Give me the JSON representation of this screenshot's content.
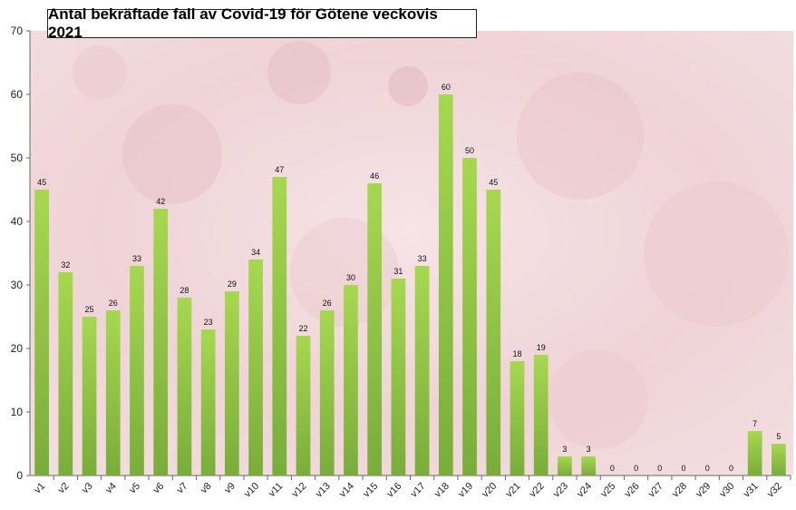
{
  "chart_data": {
    "type": "bar",
    "title": "Antal bekräftade fall av Covid-19 för Götene veckovis 2021",
    "xlabel": "",
    "ylabel": "",
    "ylim": [
      0,
      70
    ],
    "yticks": [
      0,
      10,
      20,
      30,
      40,
      50,
      60,
      70
    ],
    "grid": false,
    "legend": "none",
    "bar_color": "#8cc63f",
    "categories": [
      "v1",
      "v2",
      "v3",
      "v4",
      "v5",
      "v6",
      "v7",
      "v8",
      "v9",
      "v10",
      "v11",
      "v12",
      "v13",
      "v14",
      "v15",
      "v16",
      "v17",
      "v18",
      "v19",
      "v20",
      "v21",
      "v22",
      "v23",
      "v24",
      "v25",
      "v26",
      "v27",
      "v28",
      "v29",
      "v30",
      "v31",
      "v32"
    ],
    "values": [
      45,
      32,
      25,
      26,
      33,
      42,
      28,
      23,
      29,
      34,
      47,
      22,
      26,
      30,
      46,
      31,
      33,
      60,
      50,
      45,
      18,
      19,
      3,
      3,
      0,
      0,
      0,
      0,
      0,
      0,
      7,
      5
    ]
  }
}
